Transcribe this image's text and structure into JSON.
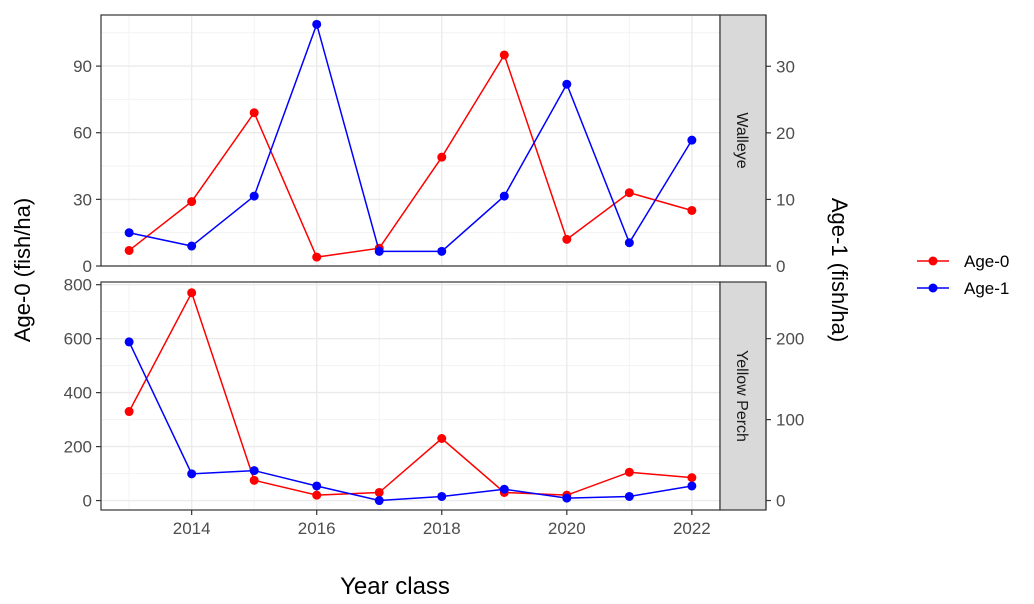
{
  "chart_data": {
    "type": "line",
    "x_label": "Year class",
    "y_label_left": "Age-0 (fish/ha)",
    "y_label_right": "Age-1 (fish/ha)",
    "x": [
      2013,
      2014,
      2015,
      2016,
      2017,
      2018,
      2019,
      2020,
      2021,
      2022
    ],
    "x_ticks": [
      "2014",
      "2016",
      "2018",
      "2020",
      "2022"
    ],
    "x_range": [
      2012.55,
      2022.45
    ],
    "grid": true,
    "legend_position": "right",
    "legend": [
      {
        "label": "Age-0",
        "color": "#ff0000"
      },
      {
        "label": "Age-1",
        "color": "#0000ff"
      }
    ],
    "panels": [
      {
        "strip_label": "Walleye",
        "left_range": [
          0,
          113
        ],
        "left_ticks": [
          "0",
          "30",
          "60",
          "90"
        ],
        "right_range": [
          0,
          37.7
        ],
        "right_ticks": [
          "0",
          "10",
          "20",
          "30"
        ],
        "series": [
          {
            "name": "Age-0",
            "axis": "left",
            "color": "#ff0000",
            "values": [
              7,
              29,
              69,
              4,
              8,
              49,
              95,
              12,
              33,
              25
            ]
          },
          {
            "name": "Age-1",
            "axis": "right",
            "color": "#0000ff",
            "values": [
              5,
              3,
              10.5,
              36.3,
              2.2,
              2.2,
              10.5,
              27.3,
              3.5,
              18.9
            ]
          }
        ]
      },
      {
        "strip_label": "Yellow Perch",
        "left_range": [
          -35,
          810
        ],
        "left_ticks": [
          "0",
          "200",
          "400",
          "600",
          "800"
        ],
        "right_range": [
          -11.7,
          270
        ],
        "right_ticks": [
          "0",
          "100",
          "200"
        ],
        "series": [
          {
            "name": "Age-0",
            "axis": "left",
            "color": "#ff0000",
            "values": [
              330,
              770,
              75,
              20,
              30,
              230,
              30,
              20,
              105,
              85
            ]
          },
          {
            "name": "Age-1",
            "axis": "right",
            "color": "#0000ff",
            "values": [
              196,
              33,
              37,
              18,
              0,
              5,
              14,
              3,
              5,
              18
            ]
          }
        ]
      }
    ]
  }
}
